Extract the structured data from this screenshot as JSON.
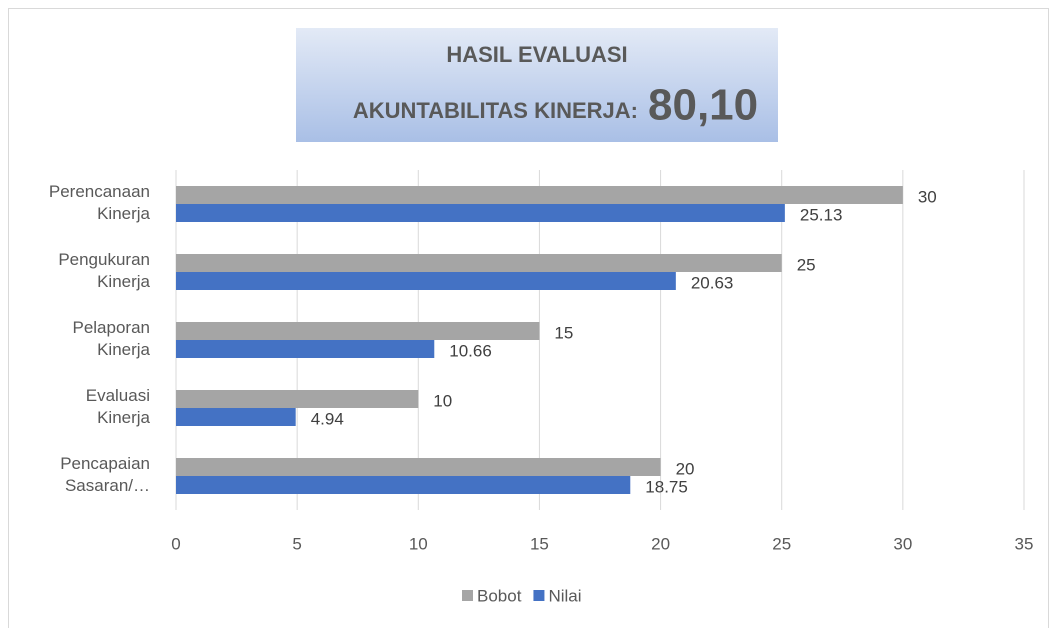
{
  "chart_data": {
    "type": "hbar",
    "title": "HASIL EVALUASI",
    "subtitle": "AKUNTABILITAS KINERJA:",
    "headline_value": "80,10",
    "categories": [
      "Perencanaan Kinerja",
      "Pengukuran Kinerja",
      "Pelaporan Kinerja",
      "Evaluasi Kinerja",
      "Pencapaian Sasaran/…"
    ],
    "series": [
      {
        "name": "Bobot",
        "color": "#a5a5a5",
        "values": [
          30,
          25,
          15,
          10,
          20
        ]
      },
      {
        "name": "Nilai",
        "color": "#4472c4",
        "values": [
          25.13,
          20.63,
          10.66,
          4.94,
          18.75
        ]
      }
    ],
    "xlim": [
      0,
      35
    ],
    "xticks": [
      0,
      5,
      10,
      15,
      20,
      25,
      30,
      35
    ],
    "grid": true,
    "legend": "bottom"
  }
}
